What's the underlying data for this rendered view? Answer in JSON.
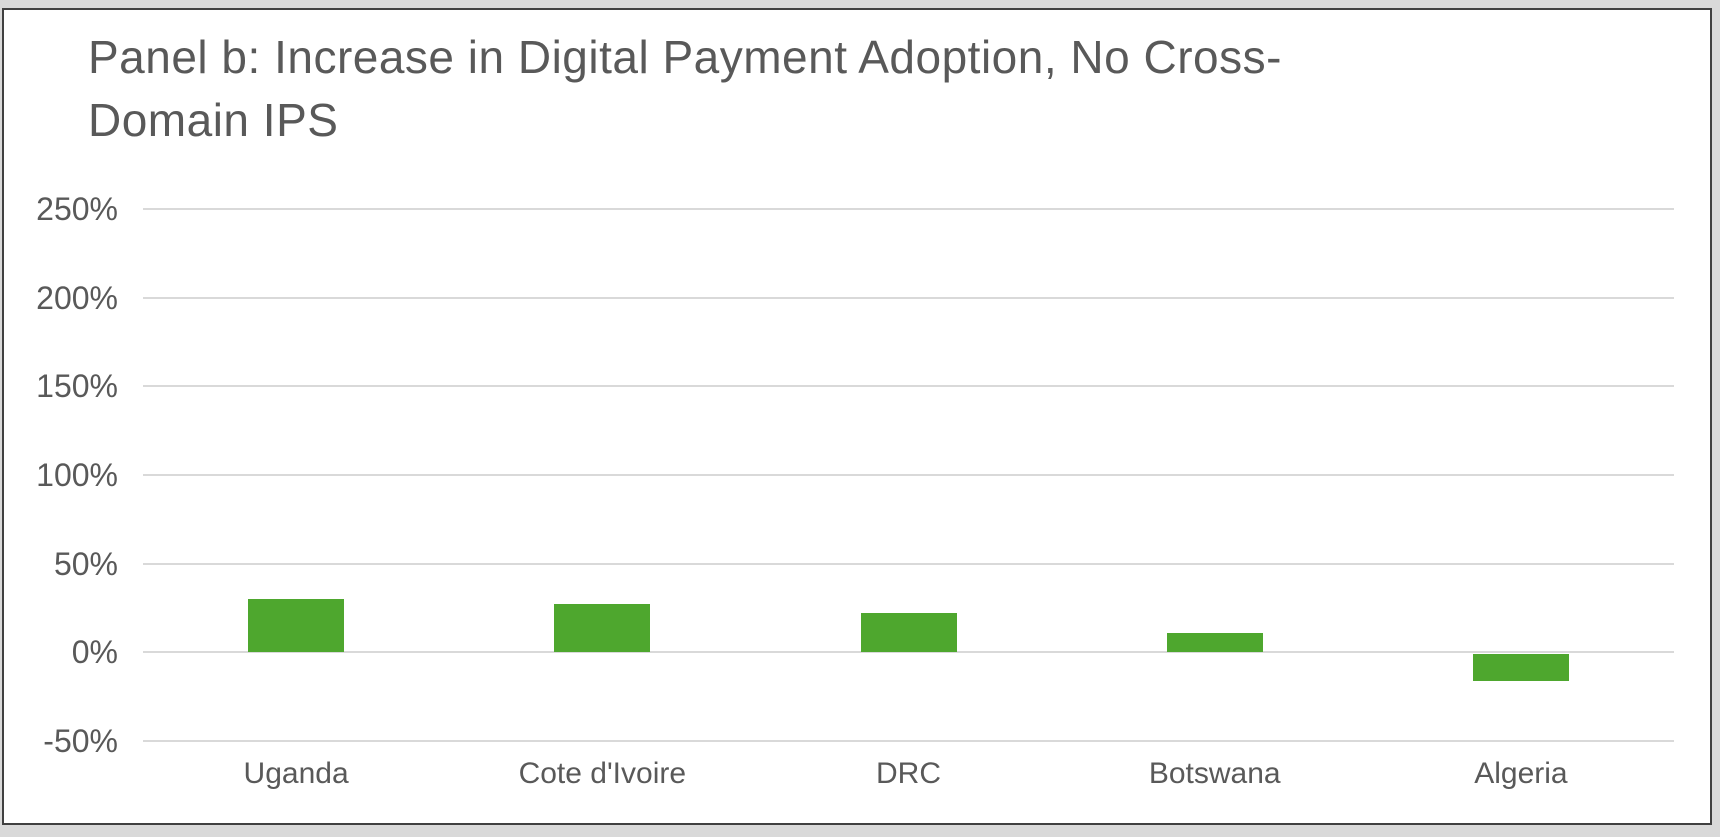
{
  "page": {
    "background_color": "#d9d9d9",
    "panel_background": "#ffffff",
    "panel_border_color": "#404040"
  },
  "chart_data": {
    "type": "bar",
    "title": "Panel b: Increase in Digital Payment Adoption, No Cross-Domain IPS",
    "title_lines": [
      "Panel b: Increase in Digital Payment Adoption, No Cross-",
      "Domain IPS"
    ],
    "categories": [
      "Uganda",
      "Cote d'Ivoire",
      "DRC",
      "Botswana",
      "Algeria"
    ],
    "values": [
      30,
      27,
      22,
      11,
      -15
    ],
    "unit": "%",
    "xlabel": "",
    "ylabel": "",
    "ylim": [
      -50,
      250
    ],
    "y_tick_labels": [
      "250%",
      "200%",
      "150%",
      "100%",
      "50%",
      "0%",
      "-50%"
    ],
    "y_tick_values": [
      250,
      200,
      150,
      100,
      50,
      0,
      -50
    ],
    "grid": "horizontal",
    "legend": "none",
    "bar_color": "#4ea72e",
    "gridline_color": "#d9d9d9",
    "text_color": "#595959"
  }
}
